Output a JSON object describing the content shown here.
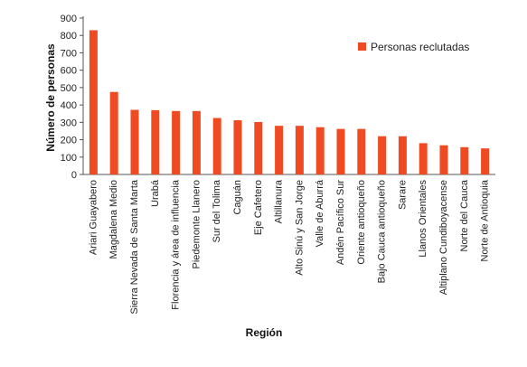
{
  "chart_data": {
    "type": "bar",
    "categories": [
      "Ariari Guayabero",
      "Magdalena Medio",
      "Sierra Nevada de Santa Marta",
      "Urabá",
      "Florencia y área de influencia",
      "Piedemonte Llanero",
      "Sur del Tolima",
      "Caguán",
      "Eje Cafetero",
      "Altillanura",
      "Alto Sinú y San Jorge",
      "Valle de Aburrá",
      "Andén Pacífico Sur",
      "Oriente antioqueño",
      "Bajo Cauca antioqueño",
      "Sarare",
      "Llanos Orientales",
      "Altiplano Cundiboyacense",
      "Norte del Cauca",
      "Norte de Antioquia"
    ],
    "series": [
      {
        "name": "Personas reclutadas",
        "values": [
          830,
          475,
          372,
          370,
          365,
          365,
          325,
          312,
          302,
          280,
          280,
          272,
          262,
          262,
          220,
          220,
          180,
          168,
          157,
          150
        ]
      }
    ],
    "title": "",
    "xlabel": "Región",
    "ylabel": "Número de personas",
    "ylim": [
      0,
      900
    ],
    "yticks": [
      0,
      100,
      200,
      300,
      400,
      500,
      600,
      700,
      800,
      900
    ],
    "grid": false,
    "legend_position": "top-right",
    "bar_color": "#F04A23"
  }
}
